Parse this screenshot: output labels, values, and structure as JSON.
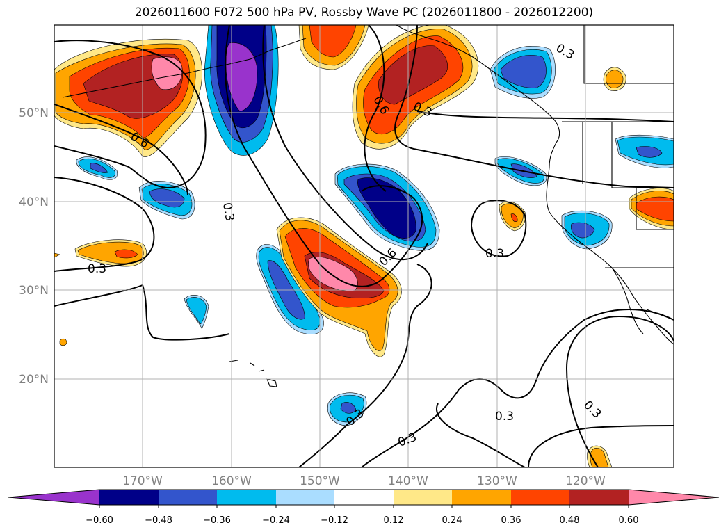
{
  "title": "2026011600 F072 500 hPa PV, Rossby Wave PC (2026011800 - 2026012200)",
  "lat_labels": [
    "50°N",
    "40°N",
    "30°N",
    "20°N"
  ],
  "lon_labels": [
    "170°W",
    "160°W",
    "150°W",
    "140°W",
    "130°W",
    "120°W"
  ],
  "contour_labels": [
    "0.3",
    "0.6",
    "0.3",
    "0.6",
    "0.3",
    "0.6",
    "0.3",
    "0.3",
    "0.3",
    "0.3",
    "0.3"
  ],
  "colorbar": {
    "tick_labels": [
      "−0.60",
      "−0.48",
      "−0.36",
      "−0.24",
      "−0.12",
      "0.12",
      "0.24",
      "0.36",
      "0.48",
      "0.60"
    ],
    "colors": [
      "#9933cc",
      "#000088",
      "#3355cc",
      "#00bbee",
      "#aaddff",
      "#ffffff",
      "#ffe888",
      "#ffa500",
      "#ff4400",
      "#b22222",
      "#ff88aa"
    ]
  }
}
